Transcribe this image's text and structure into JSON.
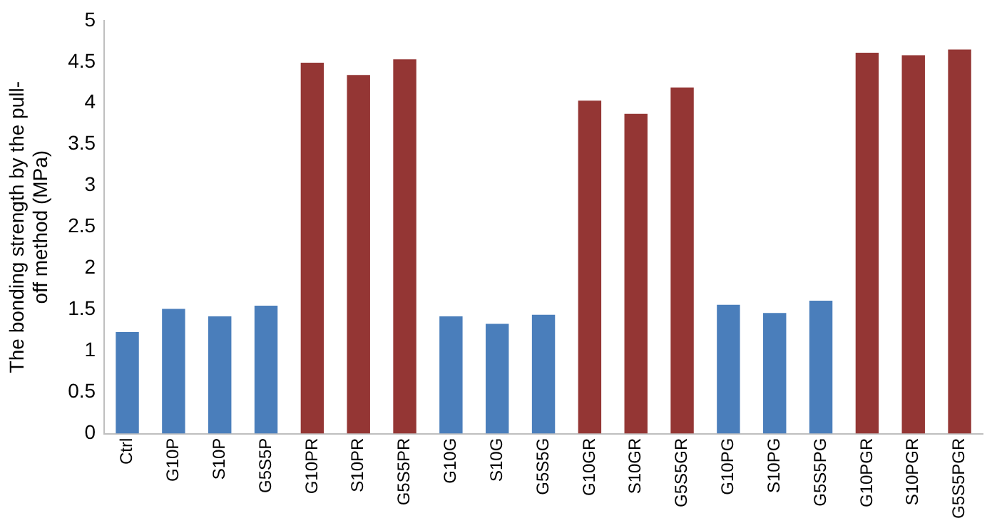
{
  "chart_data": {
    "type": "bar",
    "ylabel": "The bonding strength by the pull-off method (MPa)",
    "categories": [
      "Ctrl",
      "G10P",
      "S10P",
      "G5S5P",
      "G10PR",
      "S10PR",
      "G5S5PR",
      "G10G",
      "S10G",
      "G5S5G",
      "G10GR",
      "S10GR",
      "G5S5GR",
      "G10PG",
      "S10PG",
      "G5S5PG",
      "G10PGR",
      "S10PGR",
      "G5S5PGR"
    ],
    "values": [
      1.23,
      1.51,
      1.42,
      1.55,
      4.49,
      4.34,
      4.53,
      1.42,
      1.33,
      1.44,
      4.03,
      3.87,
      4.19,
      1.56,
      1.46,
      1.61,
      4.61,
      4.58,
      4.65
    ],
    "colors": [
      "#4a7ebb",
      "#4a7ebb",
      "#4a7ebb",
      "#4a7ebb",
      "#943634",
      "#943634",
      "#943634",
      "#4a7ebb",
      "#4a7ebb",
      "#4a7ebb",
      "#943634",
      "#943634",
      "#943634",
      "#4a7ebb",
      "#4a7ebb",
      "#4a7ebb",
      "#943634",
      "#943634",
      "#943634"
    ],
    "ylim": [
      0,
      5
    ],
    "yticks": [
      0,
      0.5,
      1,
      1.5,
      2,
      2.5,
      3,
      3.5,
      4,
      4.5,
      5
    ],
    "grid": false,
    "legend": false
  }
}
